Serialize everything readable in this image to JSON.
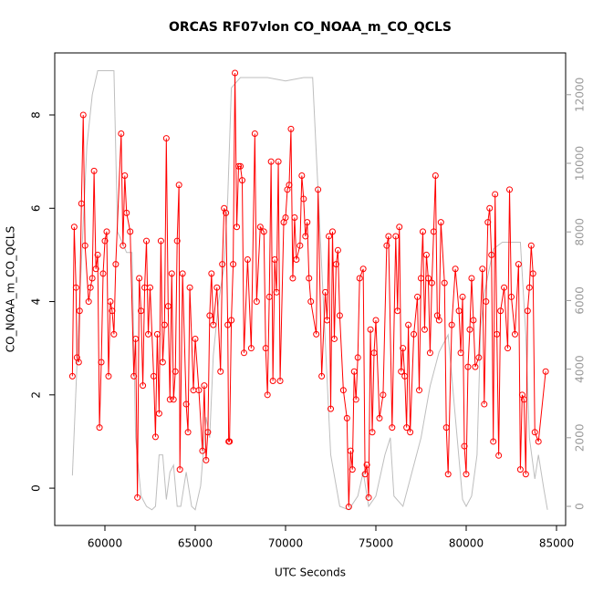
{
  "chart_data": {
    "type": "line",
    "title": "ORCAS RF07vlon CO_NOAA_m_CO_QCLS",
    "xlabel": "UTC Seconds",
    "ylabel": "CO_NOAA_m_CO_QCLS",
    "xlim": [
      57222,
      85505
    ],
    "xticks": [
      60000,
      65000,
      70000,
      75000,
      80000,
      85000
    ],
    "ylim": [
      -0.8,
      9.33
    ],
    "yticks": [
      0,
      2,
      4,
      6,
      8
    ],
    "y2lim": [
      -558,
      13218
    ],
    "y2ticks": [
      0,
      2000,
      4000,
      6000,
      8000,
      10000,
      12000
    ],
    "series": [
      {
        "color": "#ff0000",
        "markers": true,
        "x": [
          58200,
          58300,
          58400,
          58450,
          58550,
          58600,
          58700,
          58800,
          58900,
          59100,
          59200,
          59300,
          59400,
          59500,
          59600,
          59700,
          59800,
          59900,
          60000,
          60100,
          60200,
          60300,
          60400,
          60500,
          60600,
          60900,
          61000,
          61100,
          61200,
          61400,
          61600,
          61700,
          61800,
          61900,
          62000,
          62100,
          62200,
          62300,
          62400,
          62500,
          62700,
          62800,
          62900,
          63000,
          63100,
          63200,
          63300,
          63400,
          63500,
          63600,
          63700,
          63800,
          63900,
          64000,
          64100,
          64150,
          64300,
          64500,
          64600,
          64700,
          64900,
          65000,
          65200,
          65400,
          65500,
          65600,
          65700,
          65800,
          65900,
          66000,
          66200,
          66400,
          66500,
          66600,
          66700,
          66800,
          66850,
          66900,
          67000,
          67100,
          67200,
          67300,
          67400,
          67500,
          67600,
          67700,
          67900,
          68100,
          68300,
          68400,
          68600,
          68800,
          68900,
          69000,
          69100,
          69200,
          69300,
          69400,
          69500,
          69600,
          69700,
          69900,
          70000,
          70100,
          70200,
          70300,
          70400,
          70500,
          70600,
          70800,
          70900,
          71000,
          71100,
          71200,
          71300,
          71400,
          71700,
          71800,
          72000,
          72200,
          72300,
          72400,
          72500,
          72600,
          72700,
          72800,
          72900,
          73000,
          73200,
          73400,
          73500,
          73600,
          73700,
          73800,
          73900,
          74000,
          74100,
          74300,
          74400,
          74500,
          74600,
          74700,
          74800,
          74900,
          75000,
          75200,
          75400,
          75600,
          75700,
          75900,
          76100,
          76200,
          76300,
          76400,
          76500,
          76600,
          76700,
          76800,
          76900,
          77100,
          77300,
          77400,
          77500,
          77600,
          77700,
          77800,
          77900,
          78000,
          78100,
          78200,
          78300,
          78400,
          78500,
          78600,
          78800,
          78900,
          79000,
          79200,
          79400,
          79600,
          79700,
          79800,
          79900,
          80000,
          80100,
          80200,
          80300,
          80400,
          80500,
          80700,
          80900,
          81000,
          81100,
          81200,
          81300,
          81400,
          81500,
          81600,
          81700,
          81800,
          81900,
          82100,
          82300,
          82400,
          82500,
          82700,
          82900,
          83000,
          83100,
          83200,
          83300,
          83400,
          83500,
          83600,
          83700,
          83800,
          84000,
          84400
        ],
        "values": [
          2.4,
          5.6,
          4.3,
          2.8,
          2.7,
          3.8,
          6.1,
          8.0,
          5.2,
          4.0,
          4.3,
          4.5,
          6.8,
          4.7,
          5.0,
          1.3,
          2.7,
          4.6,
          5.3,
          5.5,
          2.4,
          4.0,
          3.8,
          3.3,
          4.8,
          7.6,
          5.2,
          6.7,
          5.9,
          5.5,
          2.4,
          3.2,
          -0.2,
          4.5,
          3.8,
          2.2,
          4.3,
          5.3,
          3.3,
          4.3,
          2.4,
          1.1,
          3.3,
          1.6,
          5.3,
          2.7,
          3.5,
          7.5,
          3.9,
          1.9,
          4.6,
          1.9,
          2.5,
          5.3,
          6.5,
          0.4,
          4.6,
          1.8,
          1.2,
          4.3,
          2.1,
          3.2,
          2.1,
          0.8,
          2.2,
          0.6,
          1.2,
          3.7,
          4.6,
          3.5,
          4.3,
          2.5,
          4.8,
          6.0,
          5.9,
          3.5,
          1.0,
          1.0,
          3.6,
          4.8,
          8.9,
          5.6,
          6.9,
          6.9,
          6.6,
          2.9,
          4.9,
          3.0,
          7.6,
          4.0,
          5.6,
          5.5,
          3.0,
          2.0,
          4.1,
          7.0,
          2.3,
          4.9,
          4.2,
          7.0,
          2.3,
          5.7,
          5.8,
          6.4,
          6.5,
          7.7,
          4.5,
          5.8,
          4.9,
          5.2,
          6.7,
          6.2,
          5.4,
          5.7,
          4.5,
          4.0,
          3.3,
          6.4,
          2.4,
          4.2,
          3.6,
          5.4,
          1.7,
          5.5,
          3.2,
          4.8,
          5.1,
          3.7,
          2.1,
          1.5,
          -0.4,
          0.8,
          0.4,
          2.5,
          1.9,
          2.8,
          4.5,
          4.7,
          0.3,
          0.5,
          -0.2,
          3.4,
          1.2,
          2.9,
          3.6,
          1.5,
          2.0,
          5.2,
          5.4,
          1.3,
          5.4,
          3.8,
          5.6,
          2.5,
          3.0,
          2.4,
          1.3,
          3.5,
          1.2,
          3.3,
          4.1,
          2.1,
          4.5,
          5.5,
          3.4,
          5.0,
          4.5,
          2.9,
          4.4,
          5.5,
          6.7,
          3.7,
          3.6,
          5.7,
          4.4,
          1.3,
          0.3,
          3.5,
          4.7,
          3.8,
          2.9,
          4.1,
          0.9,
          0.3,
          2.6,
          3.4,
          4.5,
          3.6,
          2.6,
          2.8,
          4.7,
          1.8,
          4.0,
          5.7,
          6.0,
          5.0,
          1.0,
          6.3,
          3.3,
          0.7,
          3.8,
          4.3,
          3.0,
          6.4,
          4.1,
          3.3,
          4.8,
          0.4,
          2.0,
          1.9,
          0.3,
          3.8,
          4.3,
          5.2,
          4.6,
          1.2,
          1.0,
          2.5
        ]
      },
      {
        "color": "#bebebe",
        "axis": "y2",
        "markers": false,
        "x": [
          58200,
          58600,
          59000,
          59300,
          59600,
          60500,
          60700,
          61200,
          61500,
          61700,
          62000,
          62300,
          62600,
          62800,
          63000,
          63200,
          63400,
          63600,
          63800,
          64000,
          64200,
          64500,
          64800,
          65000,
          65300,
          65600,
          65800,
          66000,
          66300,
          66600,
          66800,
          67000,
          67500,
          69000,
          70000,
          71000,
          71500,
          72000,
          72500,
          73000,
          73500,
          74000,
          74300,
          74600,
          75000,
          75500,
          75800,
          76000,
          76500,
          77000,
          77500,
          78000,
          78500,
          79000,
          79500,
          79800,
          80000,
          80300,
          80600,
          80800,
          81000,
          81500,
          82000,
          83000,
          83300,
          83500,
          83800,
          84000,
          84300,
          84500
        ],
        "values": [
          900,
          6000,
          10500,
          12000,
          12700,
          12700,
          8000,
          7400,
          7400,
          2000,
          300,
          0,
          -100,
          0,
          1500,
          1500,
          200,
          1000,
          1200,
          0,
          0,
          1000,
          0,
          -100,
          600,
          2600,
          2000,
          4400,
          6000,
          7000,
          9000,
          12200,
          12500,
          12500,
          12400,
          12500,
          12500,
          7000,
          1500,
          0,
          -100,
          300,
          1000,
          0,
          300,
          1500,
          2000,
          300,
          0,
          1000,
          2000,
          3500,
          4500,
          5000,
          2000,
          200,
          0,
          300,
          1500,
          5200,
          6200,
          7500,
          7700,
          7700,
          5000,
          2000,
          800,
          1500,
          500,
          -100
        ]
      }
    ]
  }
}
